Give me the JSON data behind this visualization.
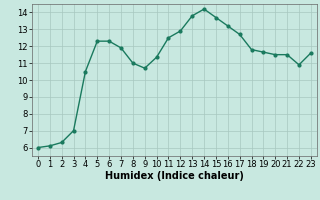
{
  "x": [
    0,
    1,
    2,
    3,
    4,
    5,
    6,
    7,
    8,
    9,
    10,
    11,
    12,
    13,
    14,
    15,
    16,
    17,
    18,
    19,
    20,
    21,
    22,
    23
  ],
  "y": [
    6.0,
    6.1,
    6.3,
    7.0,
    10.5,
    12.3,
    12.3,
    11.9,
    11.0,
    10.7,
    11.35,
    12.5,
    12.9,
    13.8,
    14.2,
    13.7,
    13.2,
    12.7,
    11.8,
    11.65,
    11.5,
    11.5,
    10.9,
    11.6
  ],
  "line_color": "#1a7a5e",
  "marker": "o",
  "marker_size": 2,
  "linewidth": 1.0,
  "bg_color": "#c8e8e0",
  "grid_color": "#a8c8c0",
  "xlabel": "Humidex (Indice chaleur)",
  "xlabel_fontsize": 7,
  "xlim": [
    -0.5,
    23.5
  ],
  "ylim": [
    5.5,
    14.5
  ],
  "yticks": [
    6,
    7,
    8,
    9,
    10,
    11,
    12,
    13,
    14
  ],
  "xticks": [
    0,
    1,
    2,
    3,
    4,
    5,
    6,
    7,
    8,
    9,
    10,
    11,
    12,
    13,
    14,
    15,
    16,
    17,
    18,
    19,
    20,
    21,
    22,
    23
  ],
  "tick_fontsize": 6,
  "ylabel_fontsize": 7
}
